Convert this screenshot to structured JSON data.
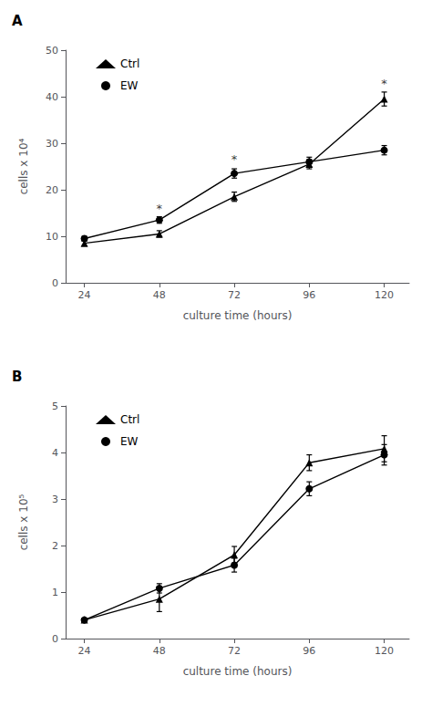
{
  "chart_data": [
    {
      "type": "line",
      "title": "A",
      "xlabel": "culture time (hours)",
      "ylabel": "cells x 10⁴",
      "xlim": [
        18,
        128
      ],
      "xticks": [
        24,
        48,
        72,
        96,
        120
      ],
      "ylim": [
        0,
        50
      ],
      "yticks": [
        0,
        10,
        20,
        30,
        40,
        50
      ],
      "grid": false,
      "legend": "upper left",
      "series": [
        {
          "name": "Ctrl",
          "color": "#000000",
          "marker": "triangle",
          "x": [
            24,
            48,
            72,
            96,
            120
          ],
          "values": [
            8.5,
            10.5,
            18.5,
            25.5,
            39.5
          ],
          "yerr": [
            0.5,
            0.7,
            1.0,
            1.0,
            1.5
          ]
        },
        {
          "name": "EW",
          "color": "#000000",
          "marker": "circle",
          "x": [
            24,
            48,
            72,
            96,
            120
          ],
          "values": [
            9.5,
            13.5,
            23.5,
            26.0,
            28.5
          ],
          "yerr": [
            0.5,
            0.7,
            1.0,
            1.0,
            1.0
          ]
        }
      ],
      "annotations": [
        {
          "x": 48,
          "y": 14.8,
          "text": "*"
        },
        {
          "x": 72,
          "y": 25.2,
          "text": "*"
        },
        {
          "x": 120,
          "y": 41.5,
          "text": "*"
        }
      ]
    },
    {
      "type": "line",
      "title": "B",
      "xlabel": "culture time (hours)",
      "ylabel": "cells x 10⁵",
      "xlim": [
        18,
        128
      ],
      "xticks": [
        24,
        48,
        72,
        96,
        120
      ],
      "ylim": [
        0,
        5
      ],
      "yticks": [
        0,
        1,
        2,
        3,
        4,
        5
      ],
      "grid": false,
      "legend": "upper left",
      "series": [
        {
          "name": "Ctrl",
          "color": "#000000",
          "marker": "triangle",
          "x": [
            24,
            48,
            72,
            96,
            120
          ],
          "values": [
            0.4,
            0.85,
            1.8,
            3.78,
            4.08
          ],
          "yerr": [
            0.04,
            0.27,
            0.18,
            0.17,
            0.28
          ]
        },
        {
          "name": "EW",
          "color": "#000000",
          "marker": "circle",
          "x": [
            24,
            48,
            72,
            96,
            120
          ],
          "values": [
            0.4,
            1.08,
            1.58,
            3.22,
            3.95
          ],
          "yerr": [
            0.04,
            0.1,
            0.15,
            0.15,
            0.22
          ]
        }
      ]
    }
  ]
}
